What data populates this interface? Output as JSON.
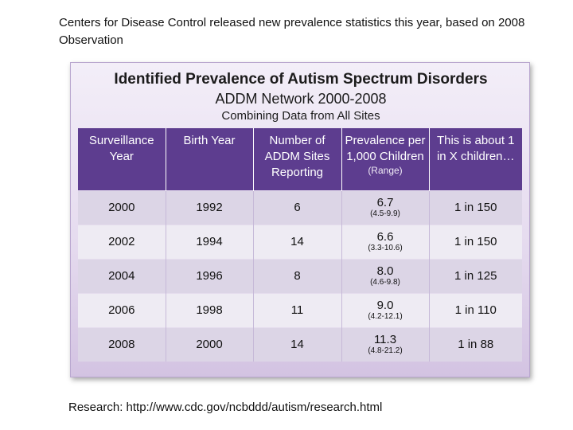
{
  "intro": "Centers for Disease Control released new prevalence statistics this year, based on 2008 Observation",
  "panel": {
    "title": "Identified Prevalence of Autism Spectrum Disorders",
    "subtitle": "ADDM Network 2000-2008",
    "subtitle2": "Combining Data from All Sites"
  },
  "table": {
    "headers": {
      "year": "Surveillance Year",
      "birth": "Birth Year",
      "sites": "Number of ADDM Sites Reporting",
      "prev": "Prevalence per 1,000 Children",
      "prev_range": "(Range)",
      "ratio": "This is about 1 in X children…"
    },
    "rows": [
      {
        "year": "2000",
        "birth": "1992",
        "sites": "6",
        "prev": "6.7",
        "range": "(4.5-9.9)",
        "ratio": "1 in 150"
      },
      {
        "year": "2002",
        "birth": "1994",
        "sites": "14",
        "prev": "6.6",
        "range": "(3.3-10.6)",
        "ratio": "1 in 150"
      },
      {
        "year": "2004",
        "birth": "1996",
        "sites": "8",
        "prev": "8.0",
        "range": "(4.6-9.8)",
        "ratio": "1 in 125"
      },
      {
        "year": "2006",
        "birth": "1998",
        "sites": "11",
        "prev": "9.0",
        "range": "(4.2-12.1)",
        "ratio": "1 in 110"
      },
      {
        "year": "2008",
        "birth": "2000",
        "sites": "14",
        "prev": "11.3",
        "range": "(4.8-21.2)",
        "ratio": "1 in 88"
      }
    ]
  },
  "research": "Research: http://www.cdc.gov/ncbddd/autism/research.html"
}
